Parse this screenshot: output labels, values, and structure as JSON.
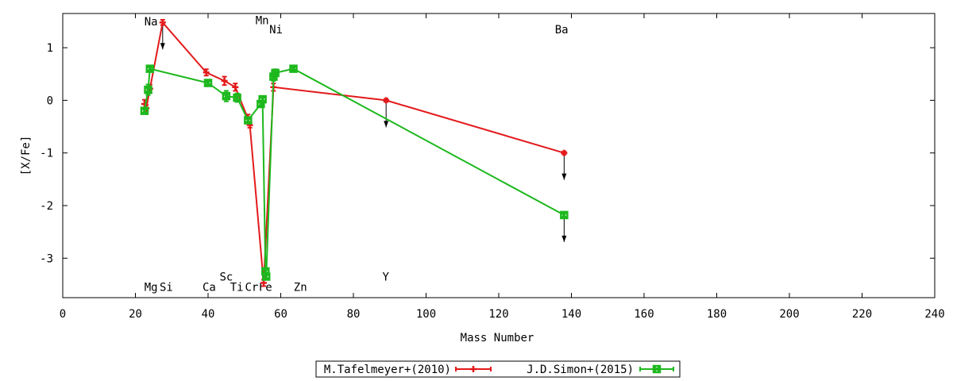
{
  "chart_data": {
    "type": "line",
    "title": "",
    "xlabel": "Mass Number",
    "ylabel": "[X/Fe]",
    "xlim": [
      0,
      240
    ],
    "ylim": [
      -3.75,
      1.65
    ],
    "xticks": [
      0,
      20,
      40,
      60,
      80,
      100,
      120,
      140,
      160,
      180,
      200,
      220,
      240
    ],
    "yticks": [
      1,
      0,
      -1,
      -2,
      -3
    ],
    "grid": false,
    "legend_position": "bottom-center",
    "element_labels": [
      {
        "text": "Na",
        "x": 24.3,
        "y": 1.5
      },
      {
        "text": "Mg",
        "x": 24.3,
        "y": -3.55
      },
      {
        "text": "Si",
        "x": 28.5,
        "y": -3.55
      },
      {
        "text": "Ca",
        "x": 40.3,
        "y": -3.55
      },
      {
        "text": "Sc",
        "x": 45.0,
        "y": -3.35
      },
      {
        "text": "Ti",
        "x": 47.9,
        "y": -3.55
      },
      {
        "text": "Cr",
        "x": 52.0,
        "y": -3.55
      },
      {
        "text": "Fe",
        "x": 55.8,
        "y": -3.55
      },
      {
        "text": "Mn",
        "x": 54.9,
        "y": 1.52
      },
      {
        "text": "Ni",
        "x": 58.7,
        "y": 1.35
      },
      {
        "text": "Zn",
        "x": 65.4,
        "y": -3.55
      },
      {
        "text": "Y",
        "x": 88.9,
        "y": -3.35
      },
      {
        "text": "Ba",
        "x": 137.3,
        "y": 1.35
      }
    ],
    "series": [
      {
        "name": "M.Tafelmeyer+(2010)",
        "color": "#e31a1c",
        "marker": "plus",
        "points": [
          {
            "x": 22.5,
            "y": -0.07,
            "err": 0.08
          },
          {
            "x": 23,
            "y": -0.15,
            "err": 0.06
          },
          {
            "x": 24,
            "y": 0.22,
            "err": 0.08
          },
          {
            "x": 27.5,
            "y": 1.48,
            "err": 0.05,
            "upper": true
          },
          {
            "x": 39.5,
            "y": 0.53,
            "err": 0.06
          },
          {
            "x": 44.5,
            "y": 0.37,
            "err": 0.08
          },
          {
            "x": 47.5,
            "y": 0.25,
            "err": 0.07
          },
          {
            "x": 51,
            "y": -0.35,
            "err": 0.08
          },
          {
            "x": 51.5,
            "y": -0.47,
            "err": 0.05
          },
          {
            "x": 55.3,
            "y": -3.47,
            "err": 0.06
          },
          {
            "x": 58,
            "y": 0.25,
            "err": 0.07
          },
          {
            "x": 89,
            "y": 0.0,
            "err": 0.03,
            "upper": true
          },
          {
            "x": 138,
            "y": -1.0,
            "err": 0.03,
            "upper": true
          }
        ]
      },
      {
        "name": "J.D.Simon+(2015)",
        "color": "#1db81d",
        "marker": "cross-square",
        "points": [
          {
            "x": 22.5,
            "y": -0.2,
            "err": 0.06
          },
          {
            "x": 23.5,
            "y": 0.2,
            "err": 0.1
          },
          {
            "x": 24,
            "y": 0.6,
            "err": 0.05
          },
          {
            "x": 40,
            "y": 0.33,
            "err": 0.05
          },
          {
            "x": 45,
            "y": 0.08,
            "err": 0.1
          },
          {
            "x": 48,
            "y": 0.05,
            "err": 0.08
          },
          {
            "x": 51,
            "y": -0.38,
            "err": 0.05
          },
          {
            "x": 54.5,
            "y": -0.07,
            "err": 0.05
          },
          {
            "x": 55,
            "y": 0.02,
            "err": 0.05
          },
          {
            "x": 55.8,
            "y": -3.25,
            "err": 0.05
          },
          {
            "x": 56,
            "y": -3.35,
            "err": 0.05
          },
          {
            "x": 58,
            "y": 0.45,
            "err": 0.08
          },
          {
            "x": 58.5,
            "y": 0.52,
            "err": 0.07
          },
          {
            "x": 63.5,
            "y": 0.6,
            "err": 0.04
          },
          {
            "x": 138,
            "y": -2.18,
            "err": 0.04,
            "upper": true
          }
        ]
      }
    ]
  }
}
